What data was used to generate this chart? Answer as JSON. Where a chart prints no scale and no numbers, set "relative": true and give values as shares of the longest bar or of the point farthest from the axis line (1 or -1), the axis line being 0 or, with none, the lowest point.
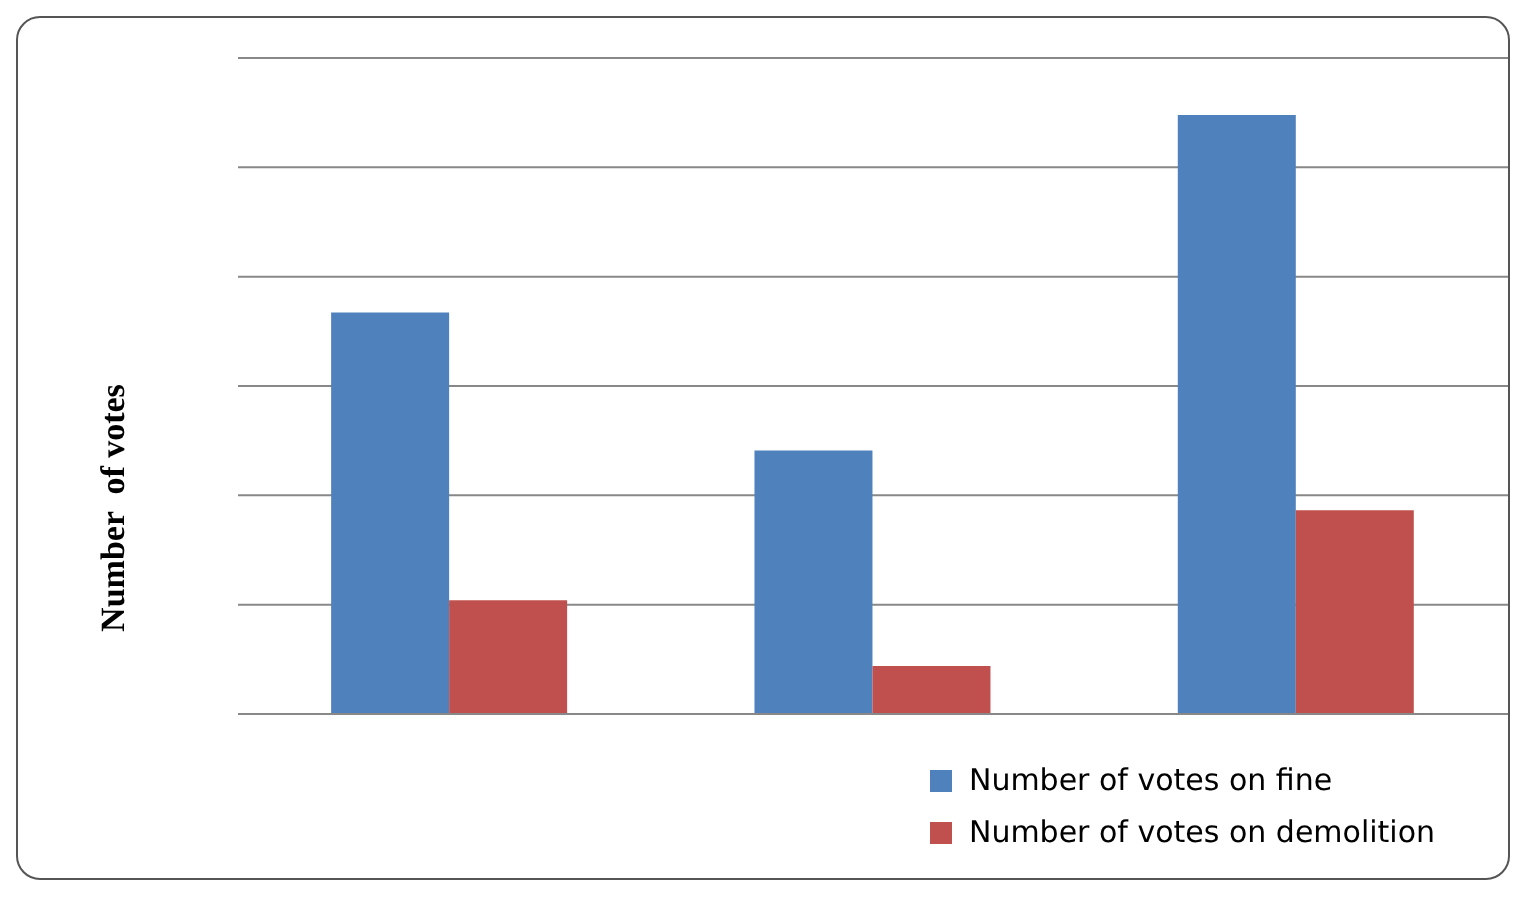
{
  "chart_data": {
    "type": "bar",
    "relative": true,
    "ylabel": "Number  of votes",
    "categories": [
      null,
      null,
      null
    ],
    "series": [
      {
        "name": "Number of votes on fine",
        "color": "#4f81bd",
        "values": [
          0.67,
          0.44,
          1
        ]
      },
      {
        "name": "Number of votes on demolition",
        "color": "#c0504d",
        "values": [
          0.19,
          0.08,
          0.34
        ]
      }
    ],
    "grid": "y",
    "legend": "bottom"
  }
}
